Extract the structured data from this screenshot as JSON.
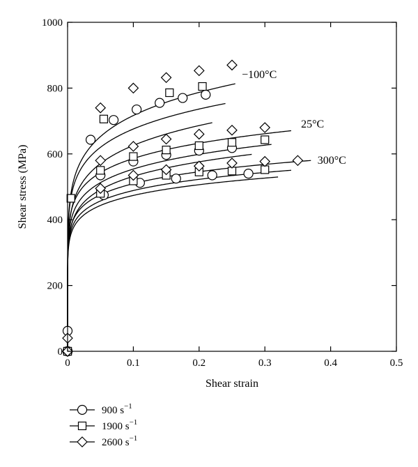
{
  "chart_data": {
    "type": "line",
    "title": "",
    "xlabel": "Shear strain",
    "ylabel": "Shear stress (MPa)",
    "xlim": [
      0,
      0.5
    ],
    "ylim": [
      0,
      1000
    ],
    "xticks": [
      0,
      0.1,
      0.2,
      0.3,
      0.4,
      0.5
    ],
    "xtick_labels": [
      "0",
      "0.1",
      "0.2",
      "0.3",
      "0.4",
      "0.5"
    ],
    "yticks": [
      0,
      200,
      400,
      600,
      800,
      1000
    ],
    "ytick_labels": [
      "0",
      "200",
      "400",
      "600",
      "800",
      "1000"
    ],
    "grid": false,
    "legend_position": "bottom-left",
    "legend": [
      {
        "marker": "circle",
        "base": "900 s",
        "sup": "−1"
      },
      {
        "marker": "square",
        "base": "1900 s",
        "sup": "−1"
      },
      {
        "marker": "diamond",
        "base": "2600 s",
        "sup": "−1"
      }
    ],
    "annotations": [
      {
        "text": "−100°C",
        "x": 0.265,
        "y": 830
      },
      {
        "text": "25°C",
        "x": 0.355,
        "y": 680
      },
      {
        "text": "300°C",
        "x": 0.38,
        "y": 570
      }
    ],
    "series": [
      {
        "temperature": "−100°C",
        "marker": "circle",
        "strain_rate": "900 s−1",
        "curve": {
          "A": 850,
          "n": 0.133,
          "x_end": 0.22
        },
        "points": [
          [
            0,
            0
          ],
          [
            0,
            62
          ],
          [
            0.035,
            643
          ],
          [
            0.07,
            703
          ],
          [
            0.105,
            735
          ],
          [
            0.14,
            755
          ],
          [
            0.175,
            770
          ],
          [
            0.21,
            780
          ]
        ]
      },
      {
        "temperature": "−100°C",
        "marker": "square",
        "strain_rate": "1900 s−1",
        "curve": {
          "A": 899,
          "n": 0.124,
          "x_end": 0.24
        },
        "points": [
          [
            0,
            0
          ],
          [
            0.005,
            465
          ],
          [
            0.055,
            706
          ],
          [
            0.155,
            786
          ],
          [
            0.205,
            805
          ]
        ]
      },
      {
        "temperature": "−100°C",
        "marker": "diamond",
        "strain_rate": "2600 s−1",
        "curve": {
          "A": 978,
          "n": 0.135,
          "x_end": 0.255
        },
        "points": [
          [
            0,
            0
          ],
          [
            0,
            40
          ],
          [
            0.05,
            740
          ],
          [
            0.1,
            800
          ],
          [
            0.15,
            832
          ],
          [
            0.2,
            853
          ],
          [
            0.25,
            870
          ]
        ]
      },
      {
        "temperature": "25°C",
        "marker": "circle",
        "strain_rate": "900 s−1",
        "curve": {
          "A": 693,
          "n": 0.115,
          "x_end": 0.28
        },
        "points": [
          [
            0,
            0
          ],
          [
            0.05,
            535
          ],
          [
            0.1,
            577
          ],
          [
            0.15,
            597
          ],
          [
            0.2,
            610
          ],
          [
            0.25,
            618
          ]
        ]
      },
      {
        "temperature": "25°C",
        "marker": "square",
        "strain_rate": "1900 s−1",
        "curve": {
          "A": 717,
          "n": 0.112,
          "x_end": 0.31
        },
        "points": [
          [
            0,
            0
          ],
          [
            0.05,
            550
          ],
          [
            0.1,
            592
          ],
          [
            0.15,
            612
          ],
          [
            0.2,
            625
          ],
          [
            0.25,
            635
          ],
          [
            0.3,
            643
          ]
        ]
      },
      {
        "temperature": "25°C",
        "marker": "diamond",
        "strain_rate": "2600 s−1",
        "curve": {
          "A": 755,
          "n": 0.11,
          "x_end": 0.34
        },
        "points": [
          [
            0,
            0
          ],
          [
            0.05,
            580
          ],
          [
            0.1,
            623
          ],
          [
            0.15,
            645
          ],
          [
            0.2,
            660
          ],
          [
            0.25,
            672
          ],
          [
            0.3,
            680
          ]
        ]
      },
      {
        "temperature": "300°C",
        "marker": "circle",
        "strain_rate": "900 s−1",
        "curve": {
          "A": 591,
          "n": 0.096,
          "x_end": 0.32
        },
        "points": [
          [
            0,
            0
          ],
          [
            0.055,
            475
          ],
          [
            0.11,
            512
          ],
          [
            0.165,
            525
          ],
          [
            0.22,
            535
          ],
          [
            0.275,
            540
          ]
        ]
      },
      {
        "temperature": "300°C",
        "marker": "square",
        "strain_rate": "1900 s−1",
        "curve": {
          "A": 611,
          "n": 0.097,
          "x_end": 0.34
        },
        "points": [
          [
            0,
            0
          ],
          [
            0.05,
            480
          ],
          [
            0.1,
            518
          ],
          [
            0.15,
            535
          ],
          [
            0.2,
            545
          ],
          [
            0.25,
            548
          ],
          [
            0.3,
            552
          ]
        ]
      },
      {
        "temperature": "300°C",
        "marker": "diamond",
        "strain_rate": "2600 s−1",
        "curve": {
          "A": 640,
          "n": 0.099,
          "x_end": 0.37
        },
        "points": [
          [
            0,
            0
          ],
          [
            0.05,
            495
          ],
          [
            0.1,
            535
          ],
          [
            0.15,
            552
          ],
          [
            0.2,
            563
          ],
          [
            0.25,
            572
          ],
          [
            0.3,
            577
          ],
          [
            0.35,
            580
          ]
        ]
      }
    ]
  }
}
